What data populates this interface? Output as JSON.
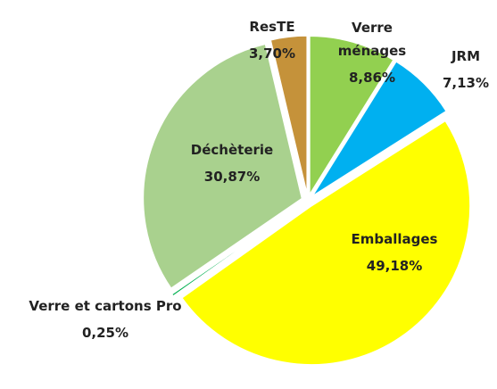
{
  "chart_data": {
    "type": "pie",
    "categories": [
      "Verre ménages",
      "JRM",
      "Emballages",
      "Verre et cartons Pro",
      "Déchèterie",
      "ResTE"
    ],
    "values": [
      8.86,
      7.13,
      49.18,
      0.25,
      30.87,
      3.7
    ],
    "value_labels": [
      "8,86%",
      "7,13%",
      "49,18%",
      "0,25%",
      "30,87%",
      "3,70%"
    ],
    "colors": [
      "#92d050",
      "#00b0f0",
      "#ffff00",
      "#00b050",
      "#a9d18e",
      "#c5923a"
    ]
  }
}
